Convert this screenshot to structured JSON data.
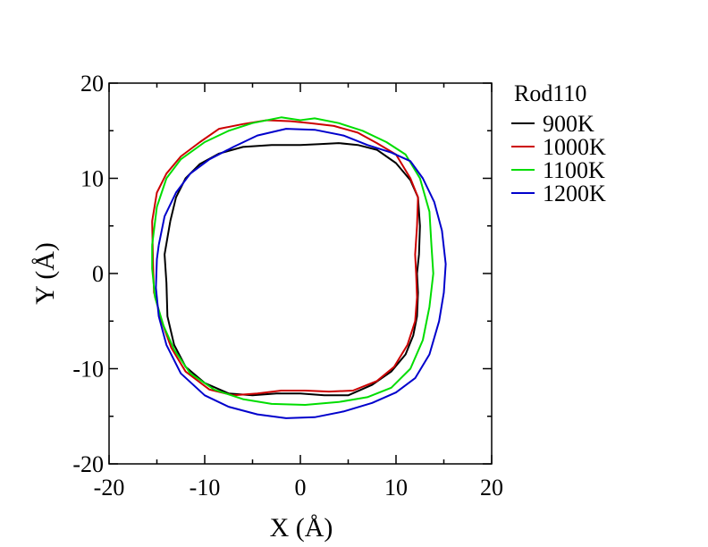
{
  "chart_data": {
    "type": "line",
    "title": "",
    "xlabel": "X (Å)",
    "ylabel": "Y (Å)",
    "xlim": [
      -20,
      20
    ],
    "ylim": [
      -20,
      20
    ],
    "x_ticks": [
      -20,
      -10,
      0,
      10,
      20
    ],
    "y_ticks": [
      -20,
      -10,
      0,
      10,
      20
    ],
    "x_tick_labels": [
      "-20",
      "-10",
      "0",
      "10",
      "20"
    ],
    "y_tick_labels": [
      "-20",
      "-10",
      "0",
      "10",
      "20"
    ],
    "grid": false,
    "legend": {
      "title": "Rod110",
      "position": "right-outside-top"
    },
    "series": [
      {
        "name": "900K",
        "color": "#000000",
        "points": [
          [
            -13.6,
            5.5
          ],
          [
            -13.0,
            8.0
          ],
          [
            -12.0,
            10.0
          ],
          [
            -10.5,
            11.5
          ],
          [
            -8.5,
            12.6
          ],
          [
            -6.0,
            13.3
          ],
          [
            -3.0,
            13.5
          ],
          [
            0.0,
            13.5
          ],
          [
            2.0,
            13.6
          ],
          [
            4.0,
            13.7
          ],
          [
            6.0,
            13.5
          ],
          [
            8.0,
            13.0
          ],
          [
            10.0,
            11.6
          ],
          [
            11.5,
            9.8
          ],
          [
            12.3,
            8.0
          ],
          [
            12.5,
            5.0
          ],
          [
            12.4,
            2.0
          ],
          [
            12.2,
            0.0
          ],
          [
            12.3,
            -2.0
          ],
          [
            12.2,
            -4.5
          ],
          [
            11.8,
            -6.5
          ],
          [
            11.0,
            -8.5
          ],
          [
            9.5,
            -10.3
          ],
          [
            7.5,
            -11.7
          ],
          [
            5.0,
            -12.8
          ],
          [
            2.5,
            -12.8
          ],
          [
            0.0,
            -12.6
          ],
          [
            -2.5,
            -12.6
          ],
          [
            -5.0,
            -12.8
          ],
          [
            -7.5,
            -12.6
          ],
          [
            -10.0,
            -11.5
          ],
          [
            -12.0,
            -9.8
          ],
          [
            -13.2,
            -7.5
          ],
          [
            -13.9,
            -4.5
          ],
          [
            -14.0,
            -1.0
          ],
          [
            -14.2,
            2.0
          ],
          [
            -13.6,
            5.5
          ]
        ]
      },
      {
        "name": "1000K",
        "color": "#cc0000",
        "points": [
          [
            -15.5,
            5.5
          ],
          [
            -15.0,
            8.5
          ],
          [
            -14.0,
            10.5
          ],
          [
            -12.5,
            12.3
          ],
          [
            -10.5,
            13.8
          ],
          [
            -8.5,
            15.2
          ],
          [
            -6.0,
            15.7
          ],
          [
            -3.5,
            16.1
          ],
          [
            -1.0,
            16.0
          ],
          [
            1.0,
            15.8
          ],
          [
            3.5,
            15.5
          ],
          [
            6.0,
            14.8
          ],
          [
            8.0,
            13.7
          ],
          [
            10.0,
            12.5
          ],
          [
            11.5,
            10.0
          ],
          [
            12.3,
            8.0
          ],
          [
            12.2,
            5.0
          ],
          [
            12.0,
            2.0
          ],
          [
            12.1,
            0.0
          ],
          [
            12.2,
            -2.5
          ],
          [
            12.0,
            -5.0
          ],
          [
            11.2,
            -7.5
          ],
          [
            9.8,
            -9.8
          ],
          [
            8.0,
            -11.3
          ],
          [
            5.5,
            -12.3
          ],
          [
            3.0,
            -12.4
          ],
          [
            0.5,
            -12.3
          ],
          [
            -2.0,
            -12.3
          ],
          [
            -4.5,
            -12.6
          ],
          [
            -7.0,
            -12.8
          ],
          [
            -9.5,
            -12.2
          ],
          [
            -12.0,
            -10.3
          ],
          [
            -13.5,
            -7.8
          ],
          [
            -14.5,
            -5.0
          ],
          [
            -15.3,
            -2.0
          ],
          [
            -15.4,
            1.0
          ],
          [
            -15.5,
            5.5
          ]
        ]
      },
      {
        "name": "1100K",
        "color": "#00dd00",
        "points": [
          [
            -15.5,
            3.0
          ],
          [
            -15.0,
            7.0
          ],
          [
            -14.0,
            10.0
          ],
          [
            -12.5,
            12.0
          ],
          [
            -10.0,
            13.8
          ],
          [
            -7.5,
            15.0
          ],
          [
            -5.0,
            15.8
          ],
          [
            -2.0,
            16.4
          ],
          [
            0.0,
            16.1
          ],
          [
            1.5,
            16.3
          ],
          [
            4.0,
            15.8
          ],
          [
            6.5,
            15.0
          ],
          [
            9.0,
            13.8
          ],
          [
            11.0,
            12.5
          ],
          [
            12.5,
            10.0
          ],
          [
            13.5,
            6.5
          ],
          [
            13.7,
            3.0
          ],
          [
            13.9,
            0.0
          ],
          [
            13.5,
            -3.5
          ],
          [
            12.8,
            -7.0
          ],
          [
            11.5,
            -10.0
          ],
          [
            9.5,
            -12.0
          ],
          [
            7.0,
            -13.0
          ],
          [
            4.0,
            -13.5
          ],
          [
            0.5,
            -13.8
          ],
          [
            -3.0,
            -13.7
          ],
          [
            -6.0,
            -13.2
          ],
          [
            -9.0,
            -12.2
          ],
          [
            -11.5,
            -10.5
          ],
          [
            -13.2,
            -8.0
          ],
          [
            -14.3,
            -5.5
          ],
          [
            -15.2,
            -2.5
          ],
          [
            -15.5,
            0.5
          ],
          [
            -15.5,
            3.0
          ]
        ]
      },
      {
        "name": "1200K",
        "color": "#0000cc",
        "points": [
          [
            -14.8,
            3.0
          ],
          [
            -14.2,
            6.0
          ],
          [
            -13.0,
            8.5
          ],
          [
            -11.5,
            10.5
          ],
          [
            -9.5,
            12.0
          ],
          [
            -7.0,
            13.3
          ],
          [
            -4.5,
            14.5
          ],
          [
            -1.5,
            15.2
          ],
          [
            1.5,
            15.1
          ],
          [
            4.5,
            14.5
          ],
          [
            7.0,
            13.5
          ],
          [
            9.5,
            12.7
          ],
          [
            11.5,
            11.8
          ],
          [
            12.8,
            10.0
          ],
          [
            14.0,
            7.5
          ],
          [
            14.8,
            4.5
          ],
          [
            15.2,
            1.0
          ],
          [
            15.0,
            -2.0
          ],
          [
            14.5,
            -5.0
          ],
          [
            13.5,
            -8.5
          ],
          [
            12.0,
            -11.0
          ],
          [
            10.0,
            -12.5
          ],
          [
            7.5,
            -13.6
          ],
          [
            4.5,
            -14.5
          ],
          [
            1.5,
            -15.1
          ],
          [
            -1.5,
            -15.2
          ],
          [
            -4.5,
            -14.8
          ],
          [
            -7.5,
            -14.0
          ],
          [
            -10.0,
            -12.8
          ],
          [
            -12.5,
            -10.5
          ],
          [
            -14.0,
            -7.5
          ],
          [
            -14.8,
            -4.5
          ],
          [
            -15.1,
            -1.5
          ],
          [
            -15.0,
            1.5
          ],
          [
            -14.8,
            3.0
          ]
        ]
      }
    ]
  }
}
